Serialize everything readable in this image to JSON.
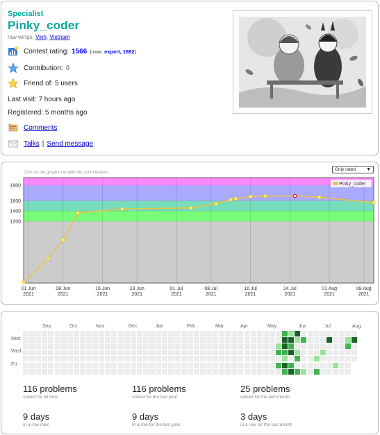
{
  "profile": {
    "rank": "Specialist",
    "handle": "Pinky_coder",
    "location_prefix": "raw wings, ",
    "city": "Vinh",
    "country": "Vietnam",
    "contest_rating_label": "Contest rating:",
    "contest_rating_value": "1566",
    "max_prefix": "(max.",
    "max_rank": "expert, 1692",
    "max_suffix": ")",
    "contribution_label": "Contribution:",
    "contribution_value": "0",
    "friend_of": "Friend of: 5 users",
    "last_visit": "Last visit: 7 hours ago",
    "registered": "Registered: 5 months ago",
    "comments_link": "Comments",
    "talks_link": "Talks",
    "separator": "|",
    "send_message_link": "Send message"
  },
  "rating_graph": {
    "hint": "Click on the graph to enable the zoom feature.",
    "filter_selected": "Only rated",
    "chart_data": {
      "type": "line",
      "series": [
        {
          "name": "Pinky_coder",
          "color": "#edc240",
          "points": [
            {
              "x": "2021-05-31",
              "y": 12
            },
            {
              "x": "2021-06-05",
              "y": 480
            },
            {
              "x": "2021-06-08",
              "y": 840
            },
            {
              "x": "2021-06-11",
              "y": 1360
            },
            {
              "x": "2021-06-20",
              "y": 1440
            },
            {
              "x": "2021-07-04",
              "y": 1460
            },
            {
              "x": "2021-07-09",
              "y": 1540
            },
            {
              "x": "2021-07-12",
              "y": 1620
            },
            {
              "x": "2021-07-13",
              "y": 1640
            },
            {
              "x": "2021-07-16",
              "y": 1680
            },
            {
              "x": "2021-07-19",
              "y": 1690
            },
            {
              "x": "2021-07-25",
              "y": 1692
            },
            {
              "x": "2021-07-30",
              "y": 1668
            },
            {
              "x": "2021-08-10",
              "y": 1566
            }
          ],
          "highlight_index": 11,
          "highlight_color": "#ff0000"
        }
      ],
      "ylim": [
        0,
        2050
      ],
      "yticks": [
        "1200",
        "1400",
        "1600",
        "1900"
      ],
      "ytick_values": [
        1200,
        1400,
        1600,
        1900
      ],
      "xticks": [
        {
          "date": "2021-06-01",
          "label1": "01 Jun",
          "label2": "2021"
        },
        {
          "date": "2021-06-08",
          "label1": "08 Jun",
          "label2": "2021"
        },
        {
          "date": "2021-06-16",
          "label1": "16 Jun",
          "label2": "2021"
        },
        {
          "date": "2021-06-23",
          "label1": "23 Jun",
          "label2": "2021"
        },
        {
          "date": "2021-07-01",
          "label1": "01 Jul",
          "label2": "2021"
        },
        {
          "date": "2021-07-08",
          "label1": "08 Jul",
          "label2": "2021"
        },
        {
          "date": "2021-07-16",
          "label1": "16 Jul",
          "label2": "2021"
        },
        {
          "date": "2021-07-24",
          "label1": "24 Jul",
          "label2": "2021"
        },
        {
          "date": "2021-08-01",
          "label1": "01 Aug",
          "label2": "2021"
        },
        {
          "date": "2021-08-08",
          "label1": "08 Aug",
          "label2": "2021"
        }
      ],
      "xlim": [
        "2021-05-31",
        "2021-08-10"
      ],
      "bands": [
        {
          "from": 0,
          "to": 1200,
          "color": "#cccccc"
        },
        {
          "from": 1200,
          "to": 1400,
          "color": "#77ff77"
        },
        {
          "from": 1400,
          "to": 1600,
          "color": "#77ddbb"
        },
        {
          "from": 1600,
          "to": 1900,
          "color": "#aaaaff"
        },
        {
          "from": 1900,
          "to": 2050,
          "color": "#ff88ff"
        }
      ],
      "grid": true,
      "legend_position": "top-right"
    }
  },
  "activity": {
    "months": [
      "Sep",
      "Oct",
      "Nov",
      "Dec",
      "Jan",
      "Feb",
      "Mar",
      "Apr",
      "May",
      "Jun",
      "Jul",
      "Aug"
    ],
    "days": [
      "Mon",
      "Wed",
      "Fri"
    ],
    "weeks": 53,
    "levels": {
      "40": [
        0,
        0,
        1,
        2,
        0,
        2,
        0
      ],
      "41": [
        2,
        3,
        3,
        2,
        1,
        3,
        2
      ],
      "42": [
        1,
        3,
        2,
        3,
        0,
        2,
        3
      ],
      "43": [
        3,
        1,
        0,
        1,
        2,
        0,
        2
      ],
      "44": [
        0,
        2,
        0,
        0,
        0,
        0,
        1
      ],
      "45": [
        0,
        0,
        0,
        0,
        0,
        0,
        0
      ],
      "46": [
        0,
        0,
        0,
        0,
        1,
        0,
        2
      ],
      "47": [
        0,
        0,
        0,
        1,
        0,
        0,
        0
      ],
      "48": [
        0,
        3,
        0,
        0,
        0,
        0,
        0
      ],
      "49": [
        0,
        0,
        0,
        0,
        0,
        1,
        0
      ],
      "50": [
        0,
        0,
        0,
        0,
        0,
        0,
        0
      ],
      "51": [
        0,
        1,
        2,
        0,
        0,
        0,
        0
      ],
      "52": [
        0,
        3,
        0,
        0,
        0,
        0,
        0
      ]
    },
    "last_filled_day": {
      "week": 52,
      "day": 4
    },
    "level_colors": [
      "#ececec",
      "#9be39b",
      "#3fb34f",
      "#196127"
    ],
    "stats": [
      {
        "big": "116 problems",
        "small": "solved for all time"
      },
      {
        "big": "116 problems",
        "small": "solved for the last year"
      },
      {
        "big": "25 problems",
        "small": "solved for the last month"
      },
      {
        "big": "9 days",
        "small": "in a row max."
      },
      {
        "big": "9 days",
        "small": "in a row for the last year"
      },
      {
        "big": "3 days",
        "small": "in a row for the last month"
      }
    ]
  }
}
